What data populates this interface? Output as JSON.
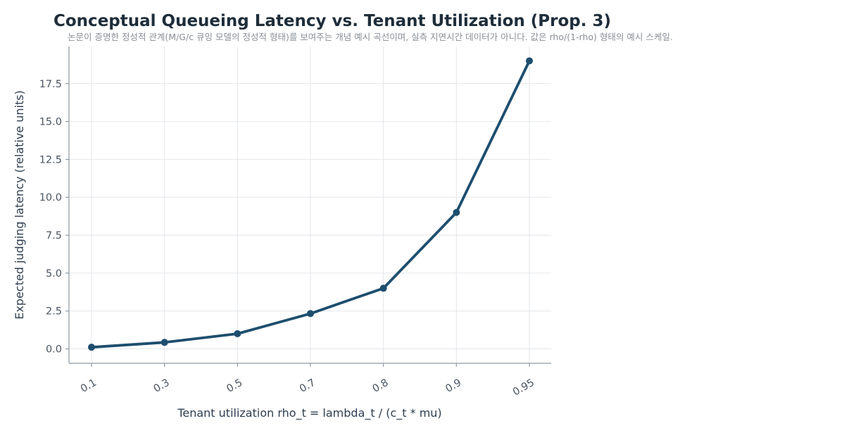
{
  "chart_data": {
    "type": "line",
    "title": "Conceptual Queueing Latency vs. Tenant Utilization (Prop. 3)",
    "subtitle": "논문이 증명한 정성적 관계(M/G/c 큐잉 모델의 정성적 형태)를 보여주는 개념 예시 곡선이며, 실측 지연시간 데이터가 아니다. 값은 rho/(1-rho) 형태의 예시 스케일.",
    "xlabel": "Tenant utilization rho_t = lambda_t / (c_t * mu)",
    "ylabel": "Expected judging latency (relative units)",
    "categories": [
      "0.1",
      "0.3",
      "0.5",
      "0.7",
      "0.8",
      "0.9",
      "0.95"
    ],
    "values": [
      0.11,
      0.43,
      1.0,
      2.33,
      4.0,
      9.0,
      19.0
    ],
    "ylim": [
      -0.95,
      19.95
    ],
    "yticks": [
      "0.0",
      "2.5",
      "5.0",
      "7.5",
      "10.0",
      "12.5",
      "15.0",
      "17.5"
    ],
    "ytick_values": [
      0,
      2.5,
      5,
      7.5,
      10,
      12.5,
      15,
      17.5
    ],
    "grid": true,
    "color": "#1d4e6e"
  }
}
